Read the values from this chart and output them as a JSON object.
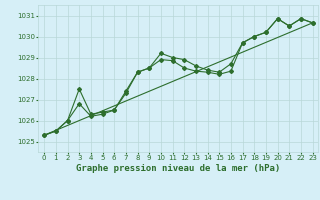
{
  "title": "Graphe pression niveau de la mer (hPa)",
  "bg_color": "#d6eff7",
  "grid_color": "#b8d8d8",
  "line_color": "#2d6e2d",
  "xlim": [
    -0.5,
    23.5
  ],
  "ylim": [
    1024.5,
    1031.5
  ],
  "yticks": [
    1025,
    1026,
    1027,
    1028,
    1029,
    1030,
    1031
  ],
  "xticks": [
    0,
    1,
    2,
    3,
    4,
    5,
    6,
    7,
    8,
    9,
    10,
    11,
    12,
    13,
    14,
    15,
    16,
    17,
    18,
    19,
    20,
    21,
    22,
    23
  ],
  "series1": {
    "x": [
      0,
      1,
      2,
      3,
      4,
      5,
      6,
      7,
      8,
      9,
      10,
      11,
      12,
      13,
      14,
      15,
      16,
      17,
      18,
      19,
      20,
      21,
      22,
      23
    ],
    "y": [
      1025.3,
      1025.5,
      1026.0,
      1027.5,
      1026.3,
      1026.4,
      1026.5,
      1027.4,
      1028.3,
      1028.5,
      1029.2,
      1029.0,
      1028.9,
      1028.6,
      1028.4,
      1028.3,
      1028.7,
      1029.7,
      1030.0,
      1030.2,
      1030.85,
      1030.5,
      1030.85,
      1030.65
    ]
  },
  "series2": {
    "x": [
      0,
      1,
      2,
      3,
      4,
      5,
      6,
      7,
      8,
      9,
      10,
      11,
      12,
      13,
      14,
      15,
      16,
      17,
      18,
      19,
      20,
      21,
      22,
      23
    ],
    "y": [
      1025.3,
      1025.5,
      1026.0,
      1026.8,
      1026.2,
      1026.3,
      1026.5,
      1027.3,
      1028.3,
      1028.5,
      1028.9,
      1028.85,
      1028.5,
      1028.35,
      1028.3,
      1028.2,
      1028.35,
      1029.7,
      1030.0,
      1030.2,
      1030.85,
      1030.5,
      1030.85,
      1030.65
    ]
  },
  "series3": {
    "x": [
      0,
      23
    ],
    "y": [
      1025.3,
      1030.65
    ]
  },
  "title_fontsize": 6.5,
  "tick_fontsize": 5.0
}
